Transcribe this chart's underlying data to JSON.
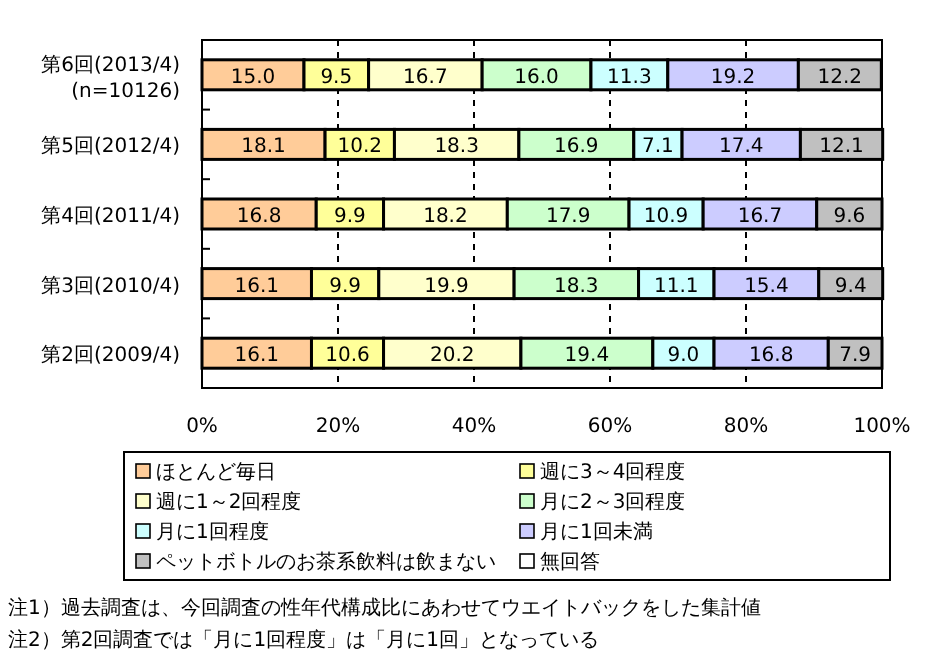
{
  "chart_data": {
    "type": "bar",
    "orientation": "horizontal",
    "stacked": true,
    "grid": "x",
    "legend": "bottom",
    "categories": [
      "第6回(2013/4)\n(n=10126)",
      "第5回(2012/4)",
      "第4回(2011/4)",
      "第3回(2010/4)",
      "第2回(2009/4)"
    ],
    "xlim": [
      0,
      100
    ],
    "xticks": [
      {
        "value": 0,
        "label": "0%"
      },
      {
        "value": 20,
        "label": "20%"
      },
      {
        "value": 40,
        "label": "40%"
      },
      {
        "value": 60,
        "label": "60%"
      },
      {
        "value": 80,
        "label": "80%"
      },
      {
        "value": 100,
        "label": "100%"
      }
    ],
    "series": [
      {
        "name": "ほとんど毎日",
        "color": "#ffcc99",
        "values": [
          15,
          18.1,
          16.8,
          16.1,
          16.1
        ],
        "value_labels": [
          "15.0",
          "18.1",
          "16.8",
          "16.1",
          "16.1"
        ]
      },
      {
        "name": "週に3～4回程度",
        "color": "#ffff99",
        "values": [
          9.5,
          10.2,
          9.9,
          9.9,
          10.6
        ],
        "value_labels": [
          "9.5",
          "10.2",
          "9.9",
          "9.9",
          "10.6"
        ]
      },
      {
        "name": "週に1～2回程度",
        "color": "#ffffcc",
        "values": [
          16.7,
          18.3,
          18.2,
          19.9,
          20.2
        ],
        "value_labels": [
          "16.7",
          "18.3",
          "18.2",
          "19.9",
          "20.2"
        ]
      },
      {
        "name": "月に2～3回程度",
        "color": "#ccffcc",
        "values": [
          16,
          16.9,
          17.9,
          18.3,
          19.4
        ],
        "value_labels": [
          "16.0",
          "16.9",
          "17.9",
          "18.3",
          "19.4"
        ]
      },
      {
        "name": "月に1回程度",
        "color": "#ccffff",
        "values": [
          11.3,
          7.1,
          10.9,
          11.1,
          9
        ],
        "value_labels": [
          "11.3",
          "7.1",
          "10.9",
          "11.1",
          "9.0"
        ]
      },
      {
        "name": "月に1回未満",
        "color": "#ccccff",
        "values": [
          19.2,
          17.4,
          16.7,
          15.4,
          16.8
        ],
        "value_labels": [
          "19.2",
          "17.4",
          "16.7",
          "15.4",
          "16.8"
        ]
      },
      {
        "name": "ペットボトルのお茶系飲料は飲まない",
        "color": "#c0c0c0",
        "values": [
          12.2,
          12.1,
          9.6,
          9.4,
          7.9
        ],
        "value_labels": [
          "12.2",
          "12.1",
          "9.6",
          "9.4",
          "7.9"
        ]
      },
      {
        "name": "無回答",
        "color": "#ffffff",
        "values": [
          null,
          null,
          null,
          null,
          null
        ]
      }
    ],
    "annotations": [
      "注1）過去調査は、今回調査の性年代構成比にあわせてウエイトバックをした集計値",
      "注2）第2回調査では「月に1回程度」は「月に1回」となっている"
    ]
  }
}
